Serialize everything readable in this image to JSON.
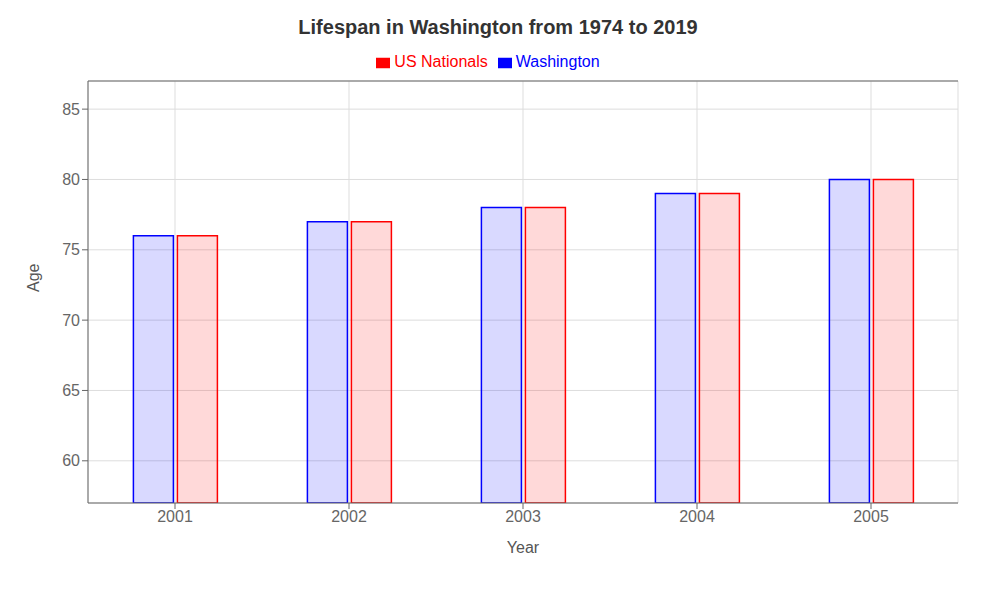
{
  "chart_data": {
    "type": "bar",
    "title": "Lifespan in Washington from 1974 to 2019",
    "x_label": "Year",
    "y_label": "Age",
    "categories": [
      "2001",
      "2002",
      "2003",
      "2004",
      "2005"
    ],
    "series": [
      {
        "name": "Washington",
        "color": "#0000ff",
        "values": [
          76,
          77,
          78,
          79,
          80
        ]
      },
      {
        "name": "US Nationals",
        "color": "#ff0000",
        "values": [
          76,
          77,
          78,
          79,
          80
        ]
      }
    ],
    "ylim": [
      57,
      87
    ],
    "yticks": [
      60,
      65,
      70,
      75,
      80,
      85
    ],
    "grid": true,
    "legend": "top"
  }
}
